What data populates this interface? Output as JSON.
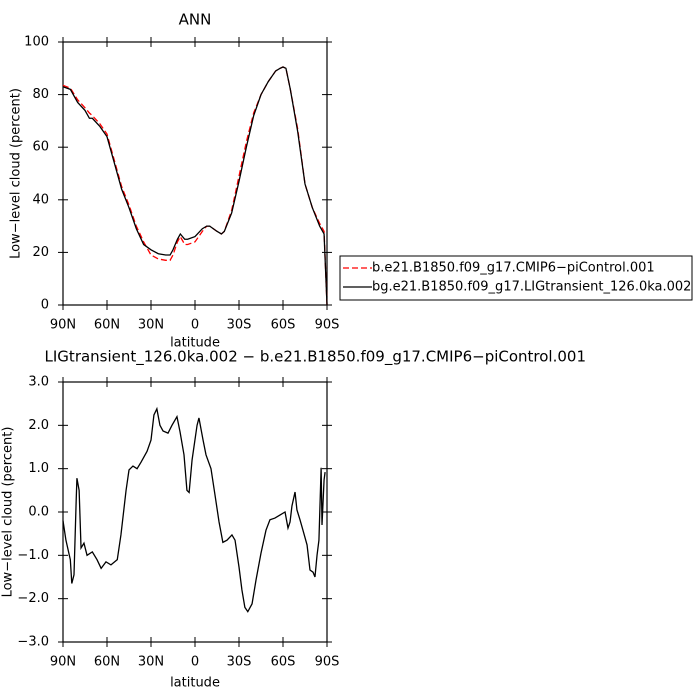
{
  "chart_data": [
    {
      "type": "line",
      "title": "ANN",
      "xlabel": "latitude",
      "ylabel": "Low−level cloud (percent)",
      "x": [
        90,
        85,
        80,
        75,
        72,
        70,
        65,
        60,
        55,
        50,
        45,
        40,
        35,
        30,
        25,
        20,
        17,
        15,
        12,
        10,
        7,
        5,
        0,
        -5,
        -8,
        -10,
        -15,
        -18,
        -20,
        -25,
        -30,
        -35,
        -40,
        -45,
        -50,
        -55,
        -58,
        -60,
        -62,
        -65,
        -70,
        -75,
        -80,
        -85,
        -88,
        -90
      ],
      "series": [
        {
          "name": "b.e21.B1850.f09_g17.CMIP6−piControl.001",
          "color": "#ff0000",
          "dashed": true,
          "values": [
            83.5,
            82.5,
            78,
            75,
            73,
            72,
            69,
            65,
            55,
            45,
            38,
            30,
            24,
            19,
            17.5,
            17,
            17,
            19,
            24,
            26,
            23,
            23,
            24,
            28,
            30,
            30,
            28,
            27,
            28,
            36,
            49,
            62,
            73,
            80,
            85,
            89,
            90,
            90.5,
            90,
            82,
            67,
            46,
            37,
            31,
            28,
            0
          ]
        },
        {
          "name": "bg.e21.B1850.f09_g17.LIGtransient_126.0ka.002",
          "color": "#000000",
          "dashed": false,
          "values": [
            83,
            82,
            77,
            74,
            71,
            71,
            68,
            64,
            54,
            44,
            37,
            29,
            23,
            21,
            19.5,
            19,
            19,
            21,
            25,
            27,
            25,
            25,
            26,
            29,
            30,
            30,
            28,
            27,
            28,
            35,
            47,
            60,
            72,
            80,
            85,
            89,
            90,
            90.5,
            90,
            82,
            66,
            46,
            37,
            30,
            27,
            0
          ]
        }
      ],
      "xlim": [
        90,
        -90
      ],
      "xticks": [
        {
          "value": 90,
          "label": "90N"
        },
        {
          "value": 60,
          "label": "60N"
        },
        {
          "value": 30,
          "label": "30N"
        },
        0,
        {
          "value": -30,
          "label": "30S"
        },
        {
          "value": -60,
          "label": "60S"
        },
        {
          "value": -90,
          "label": "90S"
        }
      ],
      "ylim": [
        0,
        100
      ],
      "yticks": [
        0,
        20,
        40,
        60,
        80,
        100
      ],
      "legend": "outside-right"
    },
    {
      "type": "line",
      "title": "LIGtransient_126.0ka.002 − b.e21.B1850.f09_g17.CMIP6−piControl.001",
      "xlabel": "latitude",
      "ylabel": "Low−level cloud (percent)",
      "x": [
        90,
        88,
        85,
        84,
        82.5,
        81,
        80.5,
        79,
        77.7,
        75.7,
        73.6,
        70,
        66.8,
        64,
        60.7,
        57.3,
        53,
        50.5,
        47,
        45,
        42.3,
        39.5,
        36.8,
        32.7,
        30,
        28,
        26,
        23.9,
        21.8,
        18.4,
        15.7,
        12.3,
        10.2,
        7.5,
        5.5,
        4,
        2,
        -1.4,
        -2.7,
        -5.5,
        -7.5,
        -10.9,
        -13.6,
        -16.4,
        -19,
        -21.8,
        -25.2,
        -27.3,
        -30,
        -32,
        -34,
        -36,
        -38.9,
        -41.6,
        -45,
        -48.4,
        -51.1,
        -54.5,
        -57.9,
        -61.4,
        -63.4,
        -64.8,
        -66.1,
        -68.2,
        -69.5,
        -71.6,
        -73.6,
        -76.4,
        -78.4,
        -80.5,
        -81.8,
        -83.2,
        -84.5,
        -86,
        -86.6,
        -88,
        -88.7
      ],
      "series": [
        {
          "color": "#000000",
          "dashed": false,
          "values": [
            -0.2,
            -0.65,
            -1.1,
            -1.65,
            -1.45,
            0.28,
            0.78,
            0.5,
            -0.83,
            -0.72,
            -1.0,
            -0.92,
            -1.1,
            -1.3,
            -1.15,
            -1.22,
            -1.1,
            -0.53,
            0.5,
            0.97,
            1.06,
            1.0,
            1.15,
            1.4,
            1.66,
            2.24,
            2.38,
            2.0,
            1.87,
            1.82,
            2.0,
            2.2,
            1.85,
            1.32,
            0.5,
            0.45,
            1.2,
            2.0,
            2.17,
            1.66,
            1.32,
            1.0,
            0.4,
            -0.23,
            -0.7,
            -0.65,
            -0.53,
            -0.65,
            -1.27,
            -1.8,
            -2.2,
            -2.3,
            -2.12,
            -1.57,
            -0.95,
            -0.42,
            -0.18,
            -0.14,
            -0.07,
            0,
            -0.37,
            -0.23,
            0.14,
            0.46,
            0.05,
            -0.18,
            -0.42,
            -0.76,
            -1.34,
            -1.39,
            -1.5,
            -1.0,
            -0.65,
            1.02,
            -0.3,
            0.74,
            0.92
          ]
        }
      ],
      "xlim": [
        90,
        -90
      ],
      "xticks": [
        {
          "value": 90,
          "label": "90N"
        },
        {
          "value": 60,
          "label": "60N"
        },
        {
          "value": 30,
          "label": "30N"
        },
        0,
        {
          "value": -30,
          "label": "30S"
        },
        {
          "value": -60,
          "label": "60S"
        },
        {
          "value": -90,
          "label": "90S"
        }
      ],
      "ylim": [
        -3,
        3
      ],
      "yticks": [
        {
          "value": -3,
          "label": "−3.0"
        },
        {
          "value": -2,
          "label": "−2.0"
        },
        {
          "value": -1,
          "label": "−1.0"
        },
        {
          "value": 0,
          "label": "0.0"
        },
        {
          "value": 1,
          "label": "1.0"
        },
        {
          "value": 2,
          "label": "2.0"
        },
        {
          "value": 3,
          "label": "3.0"
        }
      ]
    }
  ]
}
